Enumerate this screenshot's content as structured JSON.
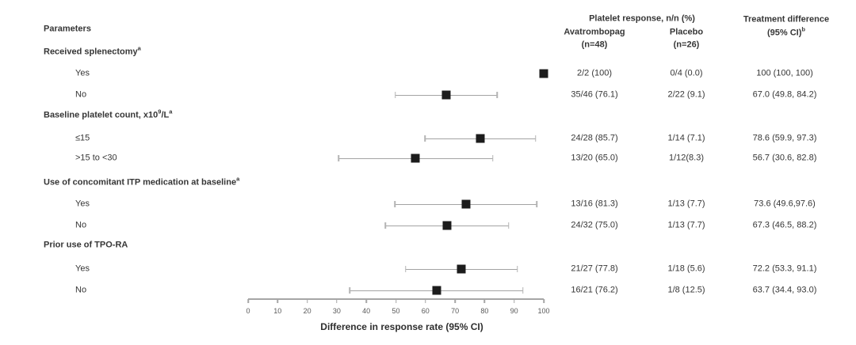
{
  "header": {
    "parameters": "Parameters",
    "group_header": "Platelet response, n/n (%)",
    "columns": {
      "avatrombopag": {
        "line1": "Avatrombopag",
        "line2": "(n=48)"
      },
      "placebo": {
        "line1": "Placebo",
        "line2": "(n=26)"
      },
      "difference": {
        "line1": "Treatment difference",
        "line2": "(95% CI)",
        "sup": "b"
      }
    }
  },
  "chart_data": {
    "type": "forest",
    "xlabel": "Difference in response rate (95% CI)",
    "xlim": [
      0,
      100
    ],
    "x_ticks": [
      "0",
      "10",
      "20",
      "30",
      "40",
      "50",
      "60",
      "70",
      "80",
      "90",
      "100"
    ],
    "marker_color": "#1c1c1c",
    "ci_line_color": "#a3a3a3",
    "groups": [
      {
        "header_parts": [
          {
            "text": "Received splenectomy"
          },
          {
            "sup": "a"
          }
        ],
        "rows": [
          {
            "label": "Yes",
            "avatrombopag": "2/2 (100)",
            "placebo": "0/4 (0.0)",
            "difference": "100 (100, 100)",
            "estimate": 100,
            "ci_low": 100,
            "ci_high": 100
          },
          {
            "label": "No",
            "avatrombopag": "35/46 (76.1)",
            "placebo": "2/22 (9.1)",
            "difference": "67.0 (49.8, 84.2)",
            "estimate": 67.0,
            "ci_low": 49.8,
            "ci_high": 84.2
          }
        ]
      },
      {
        "header_parts": [
          {
            "text": "Baseline platelet count, x10"
          },
          {
            "sup": "9"
          },
          {
            "text": "/L"
          },
          {
            "sup": "a"
          }
        ],
        "rows": [
          {
            "label": "≤15",
            "avatrombopag": "24/28 (85.7)",
            "placebo": "1/14 (7.1)",
            "difference": "78.6 (59.9, 97.3)",
            "estimate": 78.6,
            "ci_low": 59.9,
            "ci_high": 97.3
          },
          {
            "label": ">15 to <30",
            "avatrombopag": "13/20 (65.0)",
            "placebo": "1/12(8.3)",
            "difference": "56.7 (30.6, 82.8)",
            "estimate": 56.7,
            "ci_low": 30.6,
            "ci_high": 82.8
          }
        ]
      },
      {
        "header_parts": [
          {
            "text": "Use of concomitant ITP medication at baseline"
          },
          {
            "sup": "a"
          }
        ],
        "rows": [
          {
            "label": "Yes",
            "avatrombopag": "13/16 (81.3)",
            "placebo": "1/13 (7.7)",
            "difference": "73.6 (49.6,97.6)",
            "estimate": 73.6,
            "ci_low": 49.6,
            "ci_high": 97.6
          },
          {
            "label": "No",
            "avatrombopag": "24/32 (75.0)",
            "placebo": "1/13 (7.7)",
            "difference": "67.3 (46.5, 88.2)",
            "estimate": 67.3,
            "ci_low": 46.5,
            "ci_high": 88.2
          }
        ]
      },
      {
        "header_parts": [
          {
            "text": "Prior use of TPO-RA"
          }
        ],
        "rows": [
          {
            "label": "Yes",
            "avatrombopag": "21/27 (77.8)",
            "placebo": "1/18 (5.6)",
            "difference": "72.2 (53.3, 91.1)",
            "estimate": 72.2,
            "ci_low": 53.3,
            "ci_high": 91.1
          },
          {
            "label": "No",
            "avatrombopag": "16/21 (76.2)",
            "placebo": "1/8 (12.5)",
            "difference": "63.7 (34.4, 93.0)",
            "estimate": 63.7,
            "ci_low": 34.4,
            "ci_high": 93.0
          }
        ]
      }
    ]
  }
}
